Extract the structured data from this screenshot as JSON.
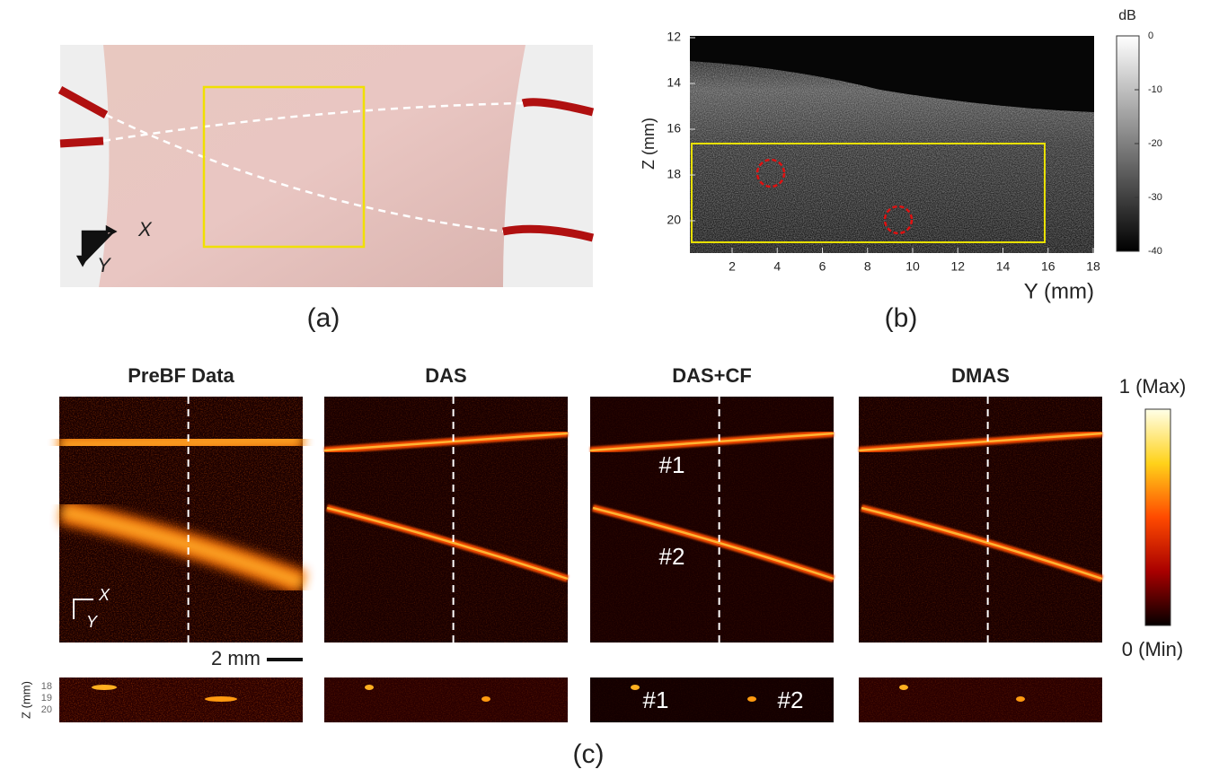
{
  "panel_a": {
    "axis_x": "X",
    "axis_y": "Y",
    "caption": "(a)"
  },
  "panel_b": {
    "ylabel": "Z (mm)",
    "xlabel": "Y (mm)",
    "yticks": [
      12,
      14,
      16,
      18,
      20
    ],
    "xticks": [
      2,
      4,
      6,
      8,
      10,
      12,
      14,
      16,
      18
    ],
    "colorbar_title": "dB",
    "colorbar_ticks": [
      0,
      -10,
      -20,
      -30,
      -40
    ],
    "caption": "(b)"
  },
  "panel_c": {
    "titles": [
      "PreBF Data",
      "DAS",
      "DAS+CF",
      "DMAS"
    ],
    "colorbar_max": "1 (Max)",
    "colorbar_min": "0 (Min)",
    "scale_bar": "2 mm",
    "axis_x": "X",
    "axis_y": "Y",
    "vessel_labels": [
      "#1",
      "#2"
    ],
    "strip_ylabel": "Z (mm)",
    "strip_yticks": [
      18,
      19,
      20
    ],
    "caption": "(c)"
  }
}
